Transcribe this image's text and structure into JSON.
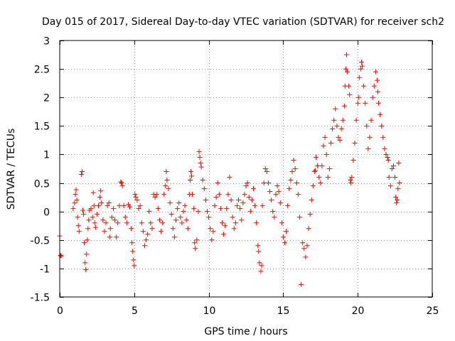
{
  "chart_data": {
    "type": "scatter",
    "title": "Day 015 of 2017, Sidereal Day-to-day VTEC variation (SDTVAR) for receiver sch2",
    "xlabel": "GPS time / hours",
    "ylabel": "SDTVAR / TECUs",
    "xlim": [
      0,
      25
    ],
    "ylim": [
      -1.5,
      3
    ],
    "xticks": [
      0,
      5,
      10,
      15,
      20,
      25
    ],
    "xtick_labels": [
      "0",
      "5",
      "10",
      "15",
      "20",
      "25"
    ],
    "yticks": [
      -1.5,
      -1,
      -0.5,
      0,
      0.5,
      1,
      1.5,
      2,
      2.5,
      3
    ],
    "ytick_labels": [
      "-1.5",
      "-1",
      "-0.5",
      "0",
      "0.5",
      "1",
      "1.5",
      "2",
      "2.5",
      "3"
    ],
    "grid": true,
    "marker": "plus",
    "color": "#ff0000",
    "series": [
      {
        "name": "SDTVAR",
        "points": [
          [
            0.0,
            -0.43
          ],
          [
            0.05,
            -0.77
          ],
          [
            0.1,
            -0.78
          ],
          [
            0.9,
            0.05
          ],
          [
            1.0,
            0.15
          ],
          [
            1.05,
            0.3
          ],
          [
            1.1,
            0.38
          ],
          [
            1.15,
            0.2
          ],
          [
            1.2,
            -0.1
          ],
          [
            1.25,
            -0.25
          ],
          [
            1.3,
            -0.35
          ],
          [
            1.45,
            0.65
          ],
          [
            1.5,
            0.7
          ],
          [
            1.55,
            0.02
          ],
          [
            1.6,
            -0.05
          ],
          [
            1.65,
            -0.55
          ],
          [
            1.7,
            -0.9
          ],
          [
            1.75,
            -1.02
          ],
          [
            1.8,
            -0.75
          ],
          [
            1.85,
            -0.5
          ],
          [
            1.9,
            -0.3
          ],
          [
            1.95,
            -0.15
          ],
          [
            2.0,
            0.02
          ],
          [
            2.1,
            0.05
          ],
          [
            2.2,
            -0.1
          ],
          [
            2.25,
            0.33
          ],
          [
            2.3,
            0.1
          ],
          [
            2.35,
            -0.2
          ],
          [
            2.4,
            -0.28
          ],
          [
            2.5,
            -0.05
          ],
          [
            2.6,
            0.1
          ],
          [
            2.7,
            0.25
          ],
          [
            2.75,
            0.36
          ],
          [
            2.8,
            0.15
          ],
          [
            2.9,
            -0.15
          ],
          [
            3.0,
            -0.35
          ],
          [
            3.1,
            -0.2
          ],
          [
            3.2,
            0.1
          ],
          [
            3.3,
            0.15
          ],
          [
            3.35,
            -0.45
          ],
          [
            3.4,
            -0.3
          ],
          [
            3.5,
            -0.1
          ],
          [
            3.6,
            0.05
          ],
          [
            3.7,
            -0.15
          ],
          [
            3.8,
            -0.45
          ],
          [
            3.9,
            -0.2
          ],
          [
            4.0,
            0.1
          ],
          [
            4.1,
            0.52
          ],
          [
            4.15,
            0.5
          ],
          [
            4.2,
            0.45
          ],
          [
            4.3,
            0.1
          ],
          [
            4.4,
            -0.1
          ],
          [
            4.5,
            -0.2
          ],
          [
            4.6,
            0.12
          ],
          [
            4.7,
            0.08
          ],
          [
            4.8,
            -0.3
          ],
          [
            4.85,
            -0.55
          ],
          [
            4.9,
            -0.7
          ],
          [
            4.95,
            -0.85
          ],
          [
            5.0,
            -0.95
          ],
          [
            5.05,
            0.3
          ],
          [
            5.1,
            0.25
          ],
          [
            5.2,
            0.2
          ],
          [
            5.3,
            0.05
          ],
          [
            5.4,
            0.1
          ],
          [
            5.5,
            -0.2
          ],
          [
            5.6,
            -0.35
          ],
          [
            5.7,
            -0.6
          ],
          [
            5.8,
            -0.5
          ],
          [
            5.9,
            -0.4
          ],
          [
            6.0,
            0.0
          ],
          [
            6.1,
            -0.2
          ],
          [
            6.2,
            -0.3
          ],
          [
            6.3,
            0.3
          ],
          [
            6.4,
            0.25
          ],
          [
            6.5,
            0.3
          ],
          [
            6.6,
            0.05
          ],
          [
            6.7,
            -0.15
          ],
          [
            6.8,
            -0.35
          ],
          [
            6.9,
            -0.2
          ],
          [
            7.0,
            0.3
          ],
          [
            7.1,
            0.45
          ],
          [
            7.15,
            0.7
          ],
          [
            7.2,
            0.55
          ],
          [
            7.3,
            0.4
          ],
          [
            7.4,
            0.15
          ],
          [
            7.5,
            -0.05
          ],
          [
            7.6,
            -0.3
          ],
          [
            7.7,
            -0.45
          ],
          [
            7.8,
            -0.15
          ],
          [
            7.9,
            0.05
          ],
          [
            8.0,
            0.15
          ],
          [
            8.1,
            -0.1
          ],
          [
            8.2,
            -0.2
          ],
          [
            8.3,
            0.0
          ],
          [
            8.4,
            0.1
          ],
          [
            8.5,
            -0.15
          ],
          [
            8.6,
            -0.3
          ],
          [
            8.7,
            0.3
          ],
          [
            8.75,
            0.55
          ],
          [
            8.8,
            0.7
          ],
          [
            8.85,
            0.62
          ],
          [
            8.9,
            0.3
          ],
          [
            9.0,
            0.05
          ],
          [
            9.05,
            -0.55
          ],
          [
            9.1,
            -0.65
          ],
          [
            9.2,
            -0.5
          ],
          [
            9.3,
            0.0
          ],
          [
            9.35,
            1.05
          ],
          [
            9.4,
            0.95
          ],
          [
            9.45,
            0.85
          ],
          [
            9.5,
            0.78
          ],
          [
            9.6,
            0.55
          ],
          [
            9.7,
            0.4
          ],
          [
            9.8,
            0.2
          ],
          [
            9.9,
            0.0
          ],
          [
            10.0,
            -0.1
          ],
          [
            10.1,
            -0.3
          ],
          [
            10.2,
            -0.5
          ],
          [
            10.3,
            -0.35
          ],
          [
            10.4,
            0.1
          ],
          [
            10.5,
            0.25
          ],
          [
            10.6,
            0.5
          ],
          [
            10.7,
            0.3
          ],
          [
            10.8,
            0.05
          ],
          [
            10.9,
            -0.2
          ],
          [
            11.0,
            -0.4
          ],
          [
            11.1,
            -0.25
          ],
          [
            11.2,
            0.05
          ],
          [
            11.3,
            0.3
          ],
          [
            11.4,
            0.6
          ],
          [
            11.5,
            0.2
          ],
          [
            11.6,
            -0.1
          ],
          [
            11.7,
            -0.3
          ],
          [
            11.8,
            -0.2
          ],
          [
            11.9,
            0.1
          ],
          [
            12.0,
            0.2
          ],
          [
            12.1,
            0.05
          ],
          [
            12.2,
            -0.15
          ],
          [
            12.3,
            0.15
          ],
          [
            12.4,
            0.3
          ],
          [
            12.5,
            0.45
          ],
          [
            12.6,
            0.5
          ],
          [
            12.7,
            0.25
          ],
          [
            12.8,
            0.0
          ],
          [
            12.9,
            0.2
          ],
          [
            13.0,
            0.4
          ],
          [
            13.1,
            0.1
          ],
          [
            13.2,
            -0.2
          ],
          [
            13.3,
            -0.6
          ],
          [
            13.35,
            -0.7
          ],
          [
            13.4,
            -0.9
          ],
          [
            13.5,
            -1.05
          ],
          [
            13.55,
            -0.95
          ],
          [
            13.6,
            0.1
          ],
          [
            13.7,
            0.5
          ],
          [
            13.8,
            0.75
          ],
          [
            13.9,
            0.7
          ],
          [
            14.0,
            0.5
          ],
          [
            14.1,
            0.35
          ],
          [
            14.2,
            0.2
          ],
          [
            14.3,
            0.0
          ],
          [
            14.4,
            -0.1
          ],
          [
            14.5,
            0.3
          ],
          [
            14.6,
            0.45
          ],
          [
            14.7,
            0.35
          ],
          [
            14.8,
            0.15
          ],
          [
            14.9,
            -0.2
          ],
          [
            15.0,
            -0.45
          ],
          [
            15.1,
            -0.55
          ],
          [
            15.2,
            -0.35
          ],
          [
            15.3,
            0.1
          ],
          [
            15.4,
            0.4
          ],
          [
            15.5,
            0.55
          ],
          [
            15.6,
            0.7
          ],
          [
            15.7,
            0.9
          ],
          [
            15.8,
            0.75
          ],
          [
            15.9,
            0.5
          ],
          [
            16.0,
            0.3
          ],
          [
            16.1,
            -0.1
          ],
          [
            16.2,
            -1.28
          ],
          [
            16.3,
            -0.55
          ],
          [
            16.4,
            -0.65
          ],
          [
            16.5,
            -0.8
          ],
          [
            16.6,
            -0.6
          ],
          [
            16.7,
            -0.3
          ],
          [
            16.8,
            -0.05
          ],
          [
            16.9,
            0.2
          ],
          [
            17.0,
            0.45
          ],
          [
            17.1,
            0.7
          ],
          [
            17.15,
            0.72
          ],
          [
            17.2,
            0.95
          ],
          [
            17.3,
            0.8
          ],
          [
            17.4,
            0.6
          ],
          [
            17.5,
            0.5
          ],
          [
            17.6,
            0.8
          ],
          [
            17.7,
            1.15
          ],
          [
            17.8,
            1.3
          ],
          [
            17.9,
            1.0
          ],
          [
            18.0,
            0.6
          ],
          [
            18.1,
            0.75
          ],
          [
            18.2,
            1.2
          ],
          [
            18.3,
            1.45
          ],
          [
            18.4,
            1.6
          ],
          [
            18.5,
            1.8
          ],
          [
            18.6,
            1.5
          ],
          [
            18.7,
            1.3
          ],
          [
            18.8,
            1.25
          ],
          [
            18.9,
            1.45
          ],
          [
            19.0,
            1.6
          ],
          [
            19.1,
            1.85
          ],
          [
            19.15,
            2.2
          ],
          [
            19.2,
            2.5
          ],
          [
            19.25,
            2.75
          ],
          [
            19.3,
            2.45
          ],
          [
            19.4,
            2.2
          ],
          [
            19.45,
            2.05
          ],
          [
            19.5,
            0.55
          ],
          [
            19.55,
            0.5
          ],
          [
            19.6,
            0.6
          ],
          [
            19.7,
            0.9
          ],
          [
            19.8,
            1.2
          ],
          [
            19.9,
            1.6
          ],
          [
            20.0,
            1.9
          ],
          [
            20.05,
            2.0
          ],
          [
            20.1,
            2.35
          ],
          [
            20.2,
            2.5
          ],
          [
            20.25,
            2.62
          ],
          [
            20.3,
            2.55
          ],
          [
            20.4,
            2.2
          ],
          [
            20.5,
            1.9
          ],
          [
            20.6,
            1.5
          ],
          [
            20.7,
            1.1
          ],
          [
            20.8,
            1.3
          ],
          [
            20.9,
            1.6
          ],
          [
            21.0,
            2.0
          ],
          [
            21.1,
            2.2
          ],
          [
            21.2,
            2.45
          ],
          [
            21.3,
            2.3
          ],
          [
            21.35,
            2.1
          ],
          [
            21.4,
            1.9
          ],
          [
            21.5,
            1.7
          ],
          [
            21.6,
            1.5
          ],
          [
            21.7,
            1.3
          ],
          [
            21.8,
            1.1
          ],
          [
            21.9,
            1.0
          ],
          [
            22.0,
            0.95
          ],
          [
            22.05,
            0.9
          ],
          [
            22.1,
            0.6
          ],
          [
            22.2,
            0.45
          ],
          [
            22.3,
            0.75
          ],
          [
            22.4,
            0.8
          ],
          [
            22.5,
            0.6
          ],
          [
            22.55,
            0.25
          ],
          [
            22.6,
            0.15
          ],
          [
            22.65,
            0.2
          ],
          [
            22.7,
            0.4
          ],
          [
            22.75,
            0.85
          ],
          [
            22.8,
            0.5
          ]
        ]
      }
    ]
  }
}
